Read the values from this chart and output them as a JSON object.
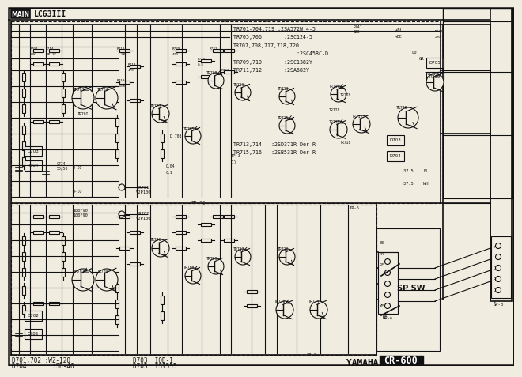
{
  "bg_color": "#c8c0b0",
  "line_color": "#111111",
  "white_color": "#f0ece0",
  "header_text": "LC63III",
  "main_label": "MAIN",
  "yamaha_text": "YAMAHA",
  "model_text": "CR-600",
  "part_info": [
    "TR701-704,719 :2SA572W 4-5",
    "TR705,706       :2SC124-5",
    "TR707,708,717,718,720",
    "                    :2SC458C-D",
    "TR709,710       :2SC1382Y",
    "TR711,712       :2SA682Y"
  ],
  "part_info2": [
    "TR713,714   :2SD371R Der R",
    "TR715,716   :2SB531R Der R"
  ],
  "bottom_left": [
    "D701,702 :WZ-120",
    "D704       :SD-46"
  ],
  "bottom_mid": [
    "D703 :IOD-1",
    "D705 :ISI555"
  ],
  "sp_sw": "SP SW"
}
